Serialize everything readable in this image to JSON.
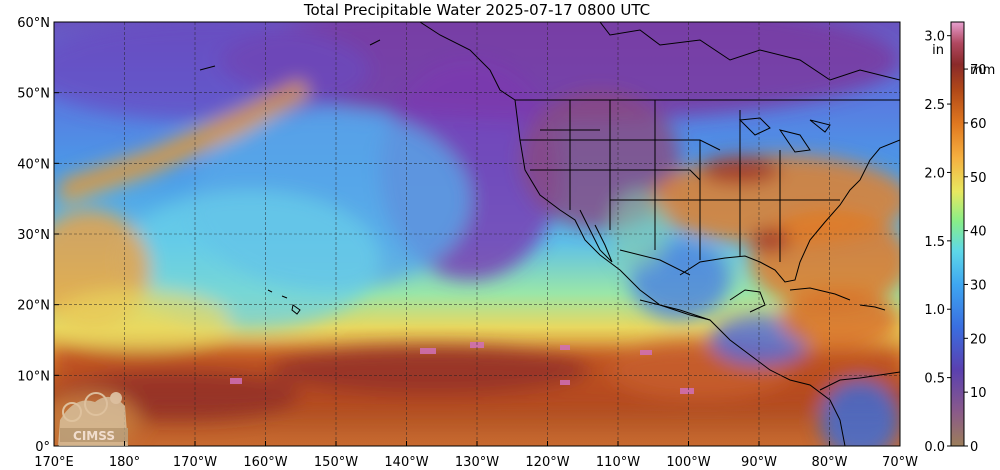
{
  "title": "Total Precipitable Water  2025-07-17 0800 UTC",
  "lat_labels": [
    "60°N",
    "50°N",
    "40°N",
    "30°N",
    "20°N",
    "10°N",
    "0°"
  ],
  "lon_labels": [
    "170°E",
    "180°",
    "170°W",
    "160°W",
    "150°W",
    "140°W",
    "130°W",
    "120°W",
    "110°W",
    "100°W",
    "90°W",
    "80°W",
    "70°W"
  ],
  "colorbar": {
    "unit_in": "in",
    "unit_mm": "mm",
    "inch_ticks": [
      "0.0",
      "0.5",
      "1.0",
      "1.5",
      "2.0",
      "2.5",
      "3.0"
    ],
    "mm_ticks": [
      "0",
      "10",
      "20",
      "30",
      "40",
      "50",
      "60",
      "70"
    ],
    "colors": [
      "#9c7e5a",
      "#7a4e8a",
      "#5a40b0",
      "#3a6ee0",
      "#3ea6f0",
      "#5ed8e8",
      "#88ee88",
      "#e8e860",
      "#f5b040",
      "#e07820",
      "#b04818",
      "#8a2a2a",
      "#b04860",
      "#e080c0"
    ]
  },
  "logo_text": "CIMSS"
}
